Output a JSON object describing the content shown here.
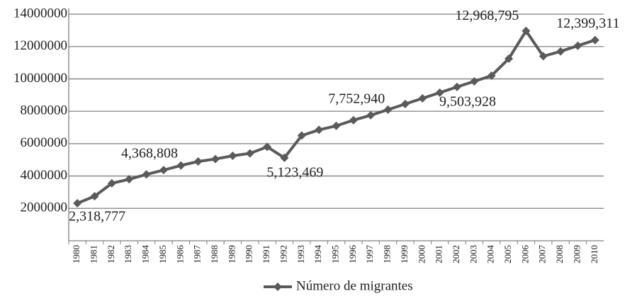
{
  "chart_data": {
    "type": "line",
    "categories": [
      "1980",
      "1981",
      "1982",
      "1983",
      "1984",
      "1985",
      "1986",
      "1987",
      "1988",
      "1989",
      "1990",
      "1991",
      "1992",
      "1993",
      "1994",
      "1995",
      "1996",
      "1997",
      "1998",
      "1999",
      "2000",
      "2001",
      "2002",
      "2003",
      "2004",
      "2005",
      "2006",
      "2007",
      "2008",
      "2009",
      "2010"
    ],
    "series": [
      {
        "name": "Número de migrantes",
        "color": "#5a5a5a",
        "values": [
          2318777,
          2750000,
          3550000,
          3800000,
          4100000,
          4368808,
          4650000,
          4900000,
          5050000,
          5250000,
          5400000,
          5800000,
          5123469,
          6500000,
          6850000,
          7100000,
          7450000,
          7752940,
          8100000,
          8450000,
          8800000,
          9150000,
          9503928,
          9850000,
          10200000,
          11250000,
          12968795,
          11400000,
          11700000,
          12050000,
          12399311
        ],
        "value_labels": [
          "2,318,777",
          null,
          null,
          null,
          null,
          "4,368,808",
          null,
          null,
          null,
          null,
          null,
          null,
          "5,123,469",
          null,
          null,
          null,
          null,
          "7,752,940",
          null,
          null,
          null,
          null,
          "9,503,928",
          null,
          null,
          null,
          "12,968,795",
          null,
          null,
          null,
          "12,399,311"
        ]
      }
    ],
    "ylim": [
      0,
      14000000
    ],
    "yticks": [
      2000000,
      4000000,
      6000000,
      8000000,
      10000000,
      12000000,
      14000000
    ],
    "grid": true,
    "legend": "bottom"
  }
}
